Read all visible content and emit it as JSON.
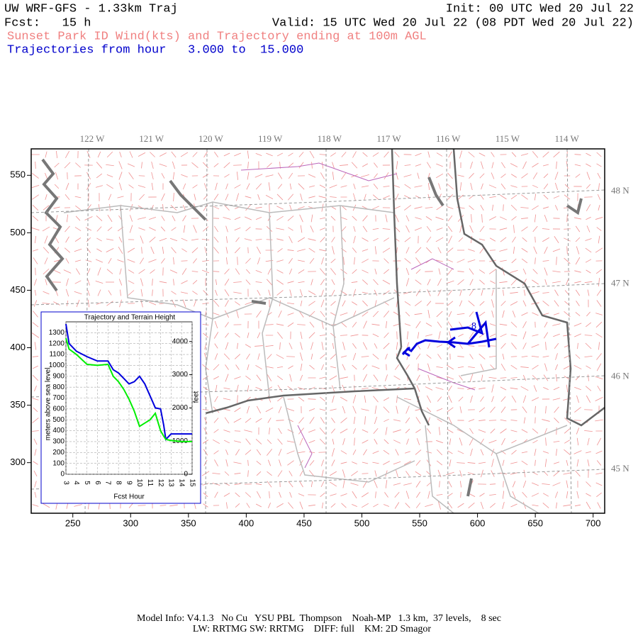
{
  "header": {
    "title": "UW WRF-GFS - 1.33km Traj",
    "init": "Init: 00 UTC Wed 20 Jul 22",
    "forecast": "Fcst:   15 h",
    "valid": "Valid: 15 UTC Wed 20 Jul 22 (08 PDT Wed 20 Jul 22)",
    "field": "Sunset Park ID Wind(kts) and Trajectory ending at 100m AGL",
    "trajectory_range": "Trajectories from hour   3.000 to  15.000"
  },
  "map": {
    "xlim": [
      214,
      710
    ],
    "ylim": [
      256,
      573
    ],
    "xticks": [
      250,
      300,
      350,
      400,
      450,
      500,
      550,
      600,
      650,
      700
    ],
    "yticks": [
      300,
      350,
      400,
      450,
      500,
      550
    ],
    "lon_labels": [
      "122 W",
      "121 W",
      "120 W",
      "119 W",
      "118 W",
      "117 W",
      "116 W",
      "115 W",
      "114 W"
    ],
    "lat_labels": [
      "48 N",
      "47 N",
      "46 N",
      "45 N"
    ],
    "trajectory_label": "8"
  },
  "inset_chart": {
    "type": "line",
    "title": "Trajectory and Terrain Height",
    "y_label": "meters above sea level",
    "y2_label": "feet",
    "x_label": "Fcst Hour",
    "x": [
      3,
      3.3,
      4,
      5,
      6,
      7,
      7.5,
      8,
      8.5,
      9,
      9.5,
      10,
      10.5,
      11,
      11.5,
      12,
      12.3,
      12.5,
      13,
      14,
      15
    ],
    "xlim": [
      3,
      15
    ],
    "xticks": [
      3,
      4,
      5,
      6,
      7,
      8,
      9,
      10,
      11,
      12,
      13,
      14,
      15
    ],
    "ylim": [
      0,
      1400
    ],
    "yticks": [
      0,
      100,
      200,
      300,
      400,
      500,
      600,
      700,
      800,
      900,
      1000,
      1100,
      1200,
      1300
    ],
    "y2lim": [
      0,
      4593
    ],
    "y2ticks": [
      0,
      1000,
      2000,
      3000,
      4000
    ],
    "grid": true,
    "series": [
      {
        "color": "#0000dd",
        "values": [
          1380,
          1200,
          1130,
          1080,
          1040,
          1040,
          960,
          930,
          880,
          830,
          850,
          900,
          830,
          720,
          610,
          600,
          450,
          320,
          370,
          370,
          370
        ]
      },
      {
        "color": "#00ee00",
        "values": [
          1250,
          1150,
          1100,
          1010,
          1000,
          1010,
          900,
          850,
          780,
          690,
          580,
          440,
          470,
          500,
          560,
          400,
          350,
          320,
          310,
          300,
          300
        ]
      }
    ]
  },
  "footer": {
    "line1": "Model Info: V4.1.3   No Cu   YSU PBL  Thompson    Noah-MP   1.3 km,  37 levels,    8 sec",
    "line2": "LW: RRTMG SW: RRTMG    DIFF: full    KM: 2D Smagor"
  }
}
